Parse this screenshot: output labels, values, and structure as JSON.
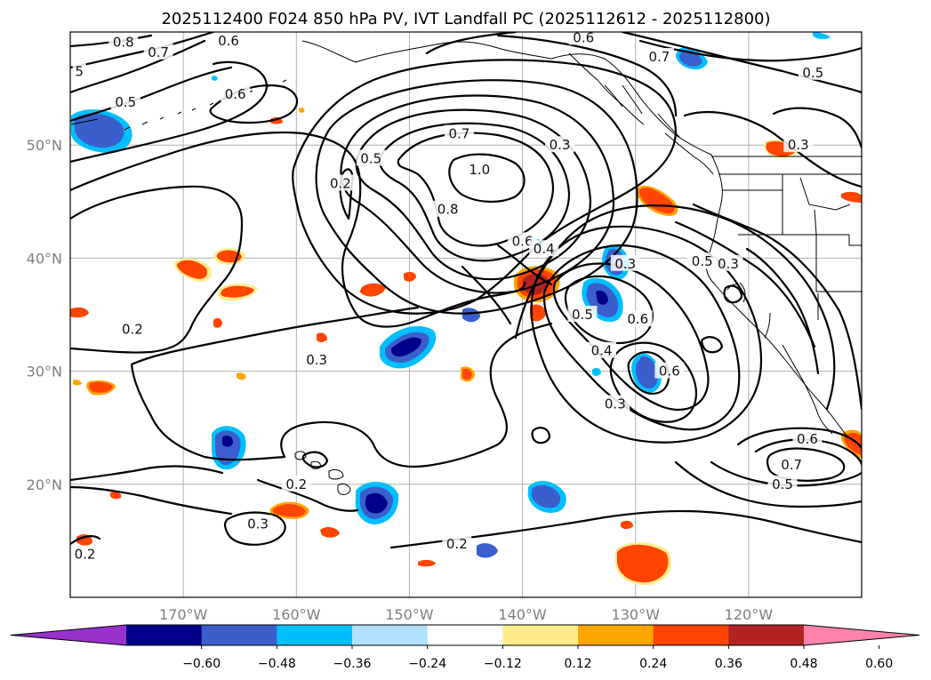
{
  "chart_data": {
    "type": "map",
    "title": "2025112400 F024 850 hPa PV, IVT Landfall PC (2025112612 - 2025112800)",
    "map_extent": {
      "lon_min": -180,
      "lon_max": -110,
      "lat_min": 10,
      "lat_max": 60
    },
    "gridlines": true,
    "lat_labels": [
      {
        "lat": 50,
        "label": "50°N"
      },
      {
        "lat": 40,
        "label": "40°N"
      },
      {
        "lat": 30,
        "label": "30°N"
      },
      {
        "lat": 20,
        "label": "20°N"
      }
    ],
    "lon_labels": [
      {
        "lon": -170,
        "label": "170°W"
      },
      {
        "lon": -160,
        "label": "160°W"
      },
      {
        "lon": -150,
        "label": "150°W"
      },
      {
        "lon": -140,
        "label": "140°W"
      },
      {
        "lon": -130,
        "label": "130°W"
      },
      {
        "lon": -120,
        "label": "120°W"
      }
    ],
    "colorbar": {
      "extend": "both",
      "boundaries": [
        -0.72,
        -0.6,
        -0.48,
        -0.36,
        -0.24,
        -0.12,
        0.12,
        0.24,
        0.36,
        0.48,
        0.6,
        0.72
      ],
      "colors": [
        "#9932cc",
        "#00008b",
        "#3a5fcd",
        "#00bfff",
        "#b0e2ff",
        "#ffffff",
        "#ffec8b",
        "#ffa500",
        "#ff4500",
        "#b22222",
        "#ff82ab"
      ],
      "tick_values": [
        -0.6,
        -0.48,
        -0.36,
        -0.24,
        -0.12,
        0.12,
        0.24,
        0.36,
        0.48,
        0.6
      ],
      "tick_labels": [
        "−0.60",
        "−0.48",
        "−0.36",
        "−0.24",
        "−0.12",
        "0.12",
        "0.24",
        "0.36",
        "0.48",
        "0.60"
      ]
    },
    "pv_contour_labels": [
      {
        "text": "0.8",
        "lon": -175.3,
        "lat": 59.1
      },
      {
        "text": "0.7",
        "lon": -172.2,
        "lat": 58.2
      },
      {
        "text": "0.6",
        "lon": -166.0,
        "lat": 59.2
      },
      {
        "text": "5",
        "lon": -179.2,
        "lat": 56.5
      },
      {
        "text": "0.5",
        "lon": -175.1,
        "lat": 53.8
      },
      {
        "text": "0.6",
        "lon": -165.4,
        "lat": 54.5
      },
      {
        "text": "0.6",
        "lon": -134.6,
        "lat": 59.5
      },
      {
        "text": "0.7",
        "lon": -127.9,
        "lat": 57.8
      },
      {
        "text": "0.5",
        "lon": -114.3,
        "lat": 56.4
      },
      {
        "text": "0.7",
        "lon": -145.6,
        "lat": 51.0
      },
      {
        "text": "0.3",
        "lon": -136.7,
        "lat": 50.0
      },
      {
        "text": "0.3",
        "lon": -115.6,
        "lat": 50.0
      },
      {
        "text": "1.0",
        "lon": -143.8,
        "lat": 47.8
      },
      {
        "text": "0.5",
        "lon": -153.4,
        "lat": 48.8
      },
      {
        "text": "0.2",
        "lon": -156.1,
        "lat": 46.6
      },
      {
        "text": "0.8",
        "lon": -146.6,
        "lat": 44.3
      },
      {
        "text": "0.6",
        "lon": -140.0,
        "lat": 41.5
      },
      {
        "text": "0.4",
        "lon": -138.1,
        "lat": 40.8
      },
      {
        "text": "0.3",
        "lon": -130.9,
        "lat": 39.5
      },
      {
        "text": "0.5",
        "lon": -124.1,
        "lat": 39.7
      },
      {
        "text": "0.3",
        "lon": -121.8,
        "lat": 39.5
      },
      {
        "text": "0.5",
        "lon": -134.7,
        "lat": 35.0
      },
      {
        "text": "0.6",
        "lon": -129.8,
        "lat": 34.6
      },
      {
        "text": "0.2",
        "lon": -174.5,
        "lat": 33.7
      },
      {
        "text": "0.3",
        "lon": -158.2,
        "lat": 31.0
      },
      {
        "text": "0.4",
        "lon": -133.0,
        "lat": 31.8
      },
      {
        "text": "0.6",
        "lon": -127.0,
        "lat": 30.0
      },
      {
        "text": "0.3",
        "lon": -131.8,
        "lat": 27.1
      },
      {
        "text": "0.6",
        "lon": -114.8,
        "lat": 24.0
      },
      {
        "text": "0.7",
        "lon": -116.2,
        "lat": 21.7
      },
      {
        "text": "0.5",
        "lon": -117.0,
        "lat": 20.0
      },
      {
        "text": "0.2",
        "lon": -160.0,
        "lat": 20.0
      },
      {
        "text": "0.3",
        "lon": -163.4,
        "lat": 16.5
      },
      {
        "text": "0.2",
        "lon": -178.7,
        "lat": 13.8
      },
      {
        "text": "0.2",
        "lon": -145.8,
        "lat": 14.7
      }
    ]
  }
}
